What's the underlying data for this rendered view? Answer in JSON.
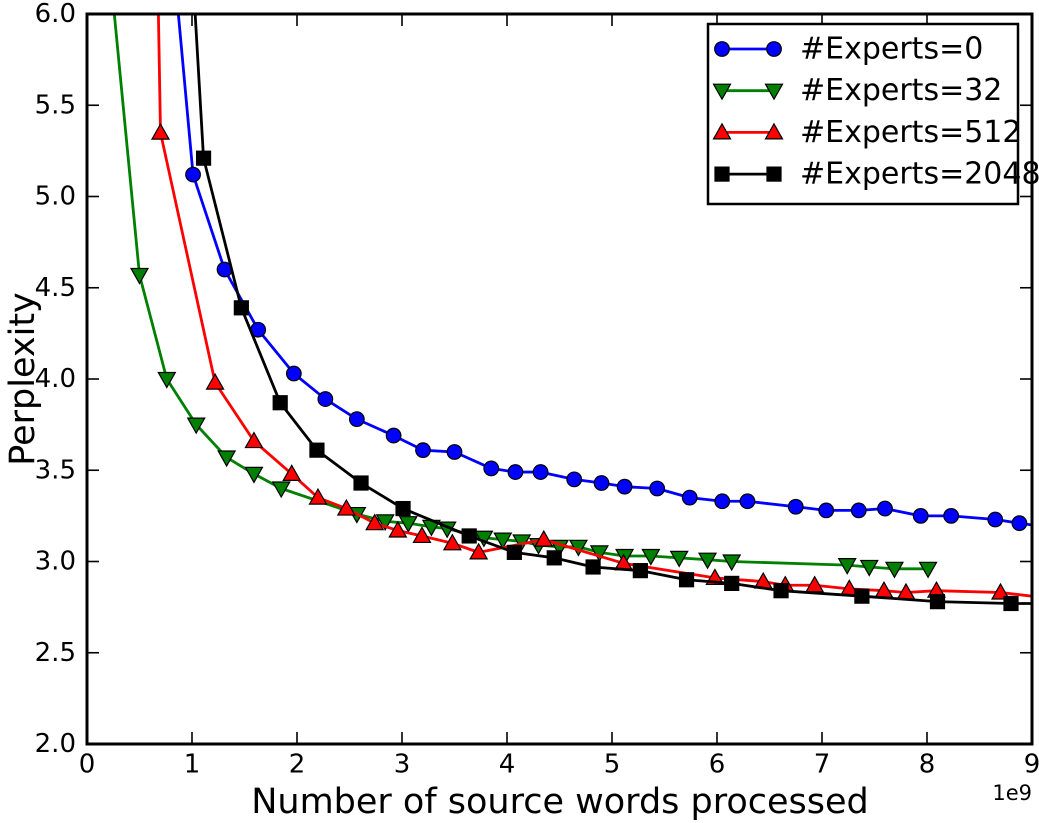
{
  "chart_data": {
    "type": "line",
    "title": "",
    "xlabel": "Number of source words processed",
    "ylabel": "Perplexity",
    "x_offset_label": "1e9",
    "xlim": [
      0,
      9
    ],
    "ylim": [
      2.0,
      6.0
    ],
    "grid": false,
    "background": "#ffffff",
    "axes_color": "#000000",
    "legend_position": "upper right",
    "xticks": {
      "values": [
        0,
        1,
        2,
        3,
        4,
        5,
        6,
        7,
        8,
        9
      ],
      "labels": [
        "0",
        "1",
        "2",
        "3",
        "4",
        "5",
        "6",
        "7",
        "8",
        "9"
      ]
    },
    "yticks": {
      "values": [
        2.0,
        2.5,
        3.0,
        3.5,
        4.0,
        4.5,
        5.0,
        5.5,
        6.0
      ],
      "labels": [
        "2.0",
        "2.5",
        "3.0",
        "3.5",
        "4.0",
        "4.5",
        "5.0",
        "5.5",
        "6.0"
      ]
    },
    "series": [
      {
        "name": "#Experts=0",
        "color": "#0000ff",
        "marker": "circle",
        "line_entry": [
          [
            0.87,
            6.0
          ]
        ],
        "points": [
          [
            1.01,
            5.12
          ],
          [
            1.31,
            4.6
          ],
          [
            1.63,
            4.27
          ],
          [
            1.97,
            4.03
          ],
          [
            2.27,
            3.89
          ],
          [
            2.57,
            3.78
          ],
          [
            2.92,
            3.69
          ],
          [
            3.2,
            3.61
          ],
          [
            3.5,
            3.6
          ],
          [
            3.85,
            3.51
          ],
          [
            4.08,
            3.49
          ],
          [
            4.32,
            3.49
          ],
          [
            4.64,
            3.45
          ],
          [
            4.9,
            3.43
          ],
          [
            5.12,
            3.41
          ],
          [
            5.43,
            3.4
          ],
          [
            5.74,
            3.35
          ],
          [
            6.05,
            3.33
          ],
          [
            6.29,
            3.33
          ],
          [
            6.75,
            3.3
          ],
          [
            7.04,
            3.28
          ],
          [
            7.35,
            3.28
          ],
          [
            7.6,
            3.29
          ],
          [
            7.94,
            3.25
          ],
          [
            8.23,
            3.25
          ],
          [
            8.65,
            3.23
          ],
          [
            8.88,
            3.21
          ]
        ],
        "line_exit": [
          [
            9.0,
            3.2
          ]
        ]
      },
      {
        "name": "#Experts=32",
        "color": "#008000",
        "marker": "triangle-down",
        "line_entry": [
          [
            0.26,
            6.0
          ]
        ],
        "points": [
          [
            0.5,
            4.57
          ],
          [
            0.76,
            4.0
          ],
          [
            1.04,
            3.75
          ],
          [
            1.33,
            3.57
          ],
          [
            1.59,
            3.48
          ],
          [
            1.85,
            3.4
          ],
          [
            2.57,
            3.26
          ],
          [
            2.84,
            3.22
          ],
          [
            3.06,
            3.21
          ],
          [
            3.28,
            3.19
          ],
          [
            3.43,
            3.18
          ],
          [
            3.78,
            3.13
          ],
          [
            3.96,
            3.12
          ],
          [
            4.14,
            3.11
          ],
          [
            4.3,
            3.09
          ],
          [
            4.5,
            3.08
          ],
          [
            4.68,
            3.08
          ],
          [
            4.88,
            3.05
          ],
          [
            5.12,
            3.03
          ],
          [
            5.37,
            3.03
          ],
          [
            5.64,
            3.02
          ],
          [
            5.91,
            3.01
          ],
          [
            6.14,
            3.0
          ],
          [
            7.24,
            2.98
          ],
          [
            7.45,
            2.97
          ],
          [
            7.69,
            2.96
          ],
          [
            8.01,
            2.96
          ]
        ],
        "line_exit": []
      },
      {
        "name": "#Experts=512",
        "color": "#ff0000",
        "marker": "triangle-up",
        "line_entry": [
          [
            0.68,
            6.0
          ]
        ],
        "points": [
          [
            0.7,
            5.35
          ],
          [
            1.22,
            3.98
          ],
          [
            1.59,
            3.66
          ],
          [
            1.95,
            3.48
          ],
          [
            2.2,
            3.35
          ],
          [
            2.47,
            3.29
          ],
          [
            2.74,
            3.21
          ],
          [
            2.96,
            3.17
          ],
          [
            3.19,
            3.14
          ],
          [
            3.48,
            3.1
          ],
          [
            3.73,
            3.05
          ],
          [
            4.35,
            3.12
          ],
          [
            5.11,
            2.99
          ],
          [
            5.98,
            2.91
          ],
          [
            6.44,
            2.89
          ],
          [
            6.65,
            2.87
          ],
          [
            6.93,
            2.87
          ],
          [
            7.26,
            2.85
          ],
          [
            7.59,
            2.84
          ],
          [
            7.8,
            2.83
          ],
          [
            8.09,
            2.84
          ],
          [
            8.7,
            2.83
          ]
        ],
        "line_exit": [
          [
            9.0,
            2.81
          ]
        ]
      },
      {
        "name": "#Experts=2048",
        "color": "#000000",
        "marker": "square",
        "line_entry": [
          [
            1.03,
            6.0
          ]
        ],
        "points": [
          [
            1.11,
            5.21
          ],
          [
            1.47,
            4.39
          ],
          [
            1.84,
            3.87
          ],
          [
            2.19,
            3.61
          ],
          [
            2.61,
            3.43
          ],
          [
            3.01,
            3.29
          ],
          [
            3.64,
            3.14
          ],
          [
            4.07,
            3.05
          ],
          [
            4.45,
            3.02
          ],
          [
            4.82,
            2.97
          ],
          [
            5.27,
            2.95
          ],
          [
            5.71,
            2.9
          ],
          [
            6.14,
            2.88
          ],
          [
            6.61,
            2.84
          ],
          [
            7.38,
            2.81
          ],
          [
            8.1,
            2.78
          ],
          [
            8.8,
            2.77
          ]
        ],
        "line_exit": [
          [
            9.0,
            2.77
          ]
        ]
      }
    ]
  }
}
